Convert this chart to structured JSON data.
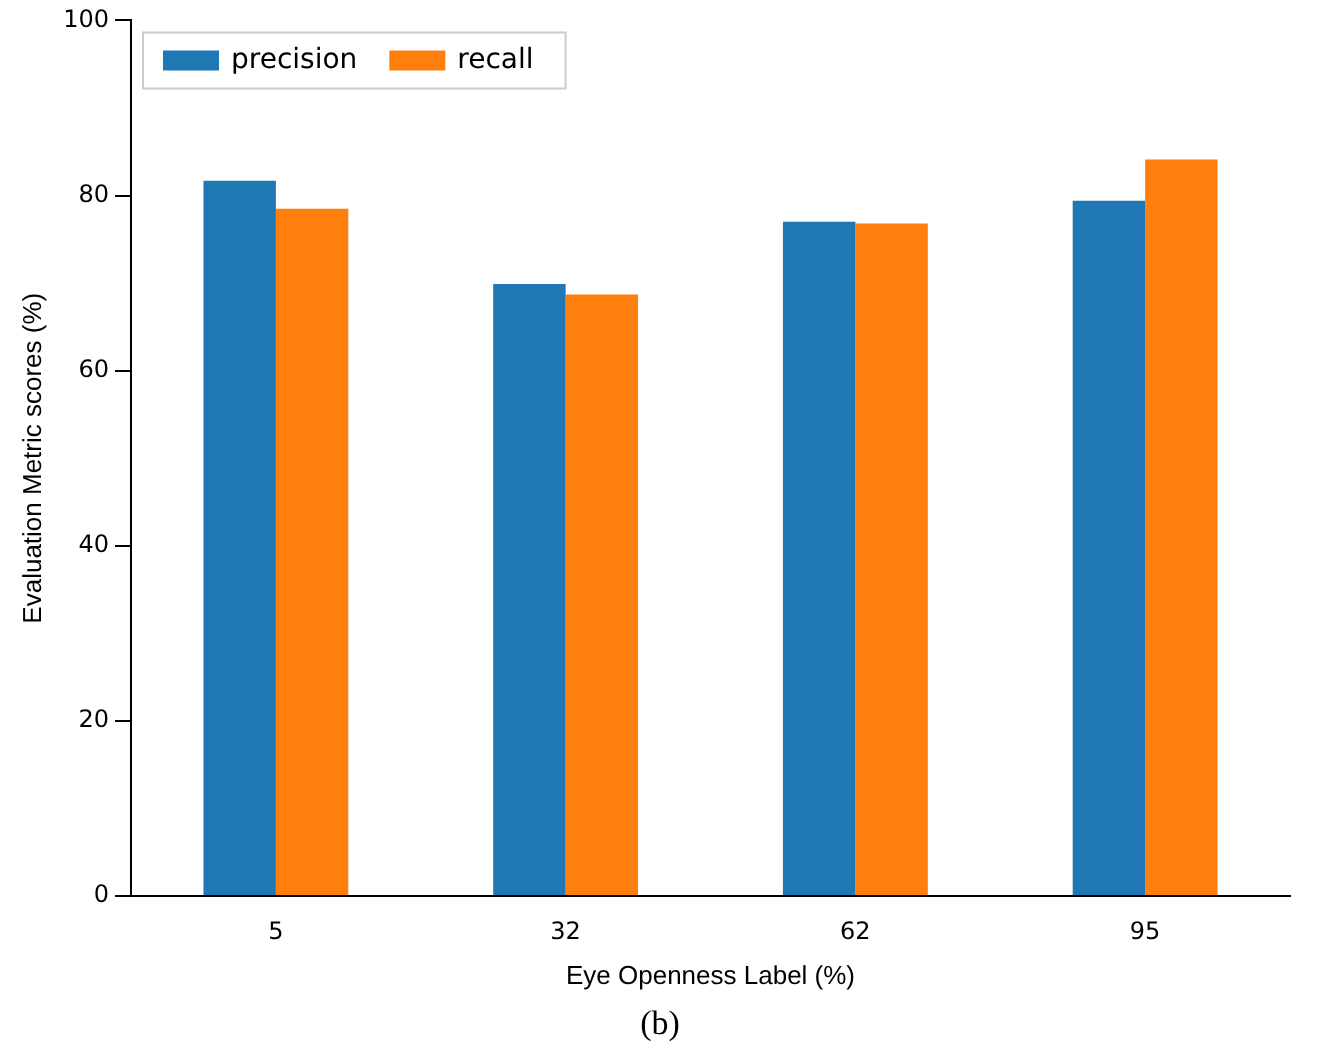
{
  "chart_data": {
    "type": "bar",
    "xlabel": "Eye Openness Label (%)",
    "ylabel": "Evaluation Metric scores (%)",
    "categories": [
      "5",
      "32",
      "62",
      "95"
    ],
    "series": [
      {
        "name": "precision",
        "color": "#1f77b4",
        "values": [
          81.7,
          69.9,
          77.0,
          79.4
        ]
      },
      {
        "name": "recall",
        "color": "#ff7f0e",
        "values": [
          78.5,
          68.7,
          76.8,
          84.1
        ]
      }
    ],
    "ylim": [
      0,
      100
    ],
    "yticks": [
      0,
      20,
      40,
      60,
      80,
      100
    ],
    "legend": "top left",
    "annotations": [
      "(b)"
    ]
  }
}
